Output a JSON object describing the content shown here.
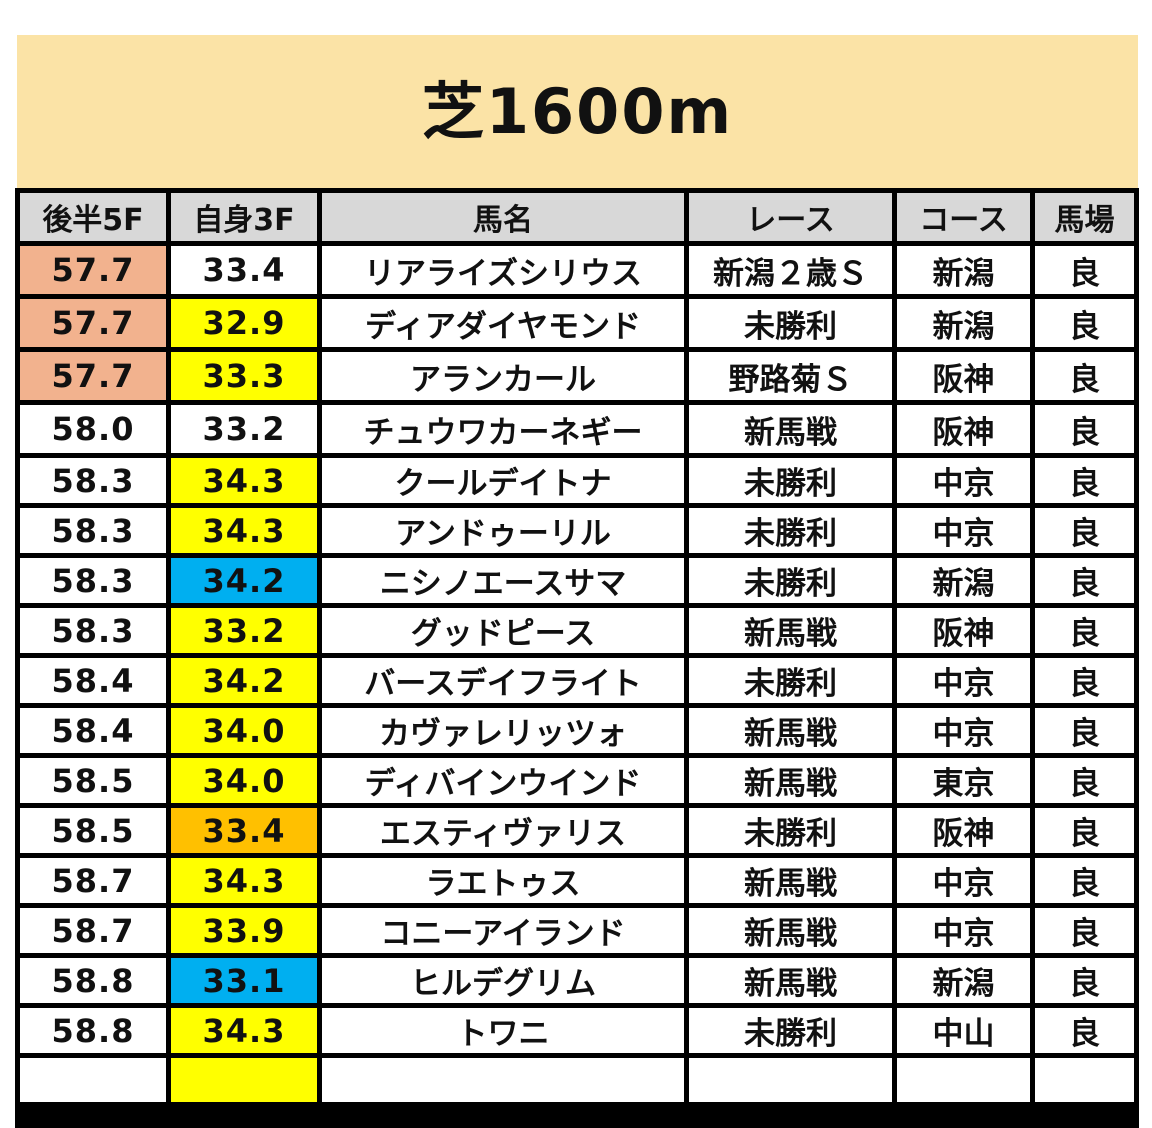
{
  "title": "芝1600m",
  "columns": [
    "後半5F",
    "自身3F",
    "馬名",
    "レース",
    "コース",
    "馬場"
  ],
  "colors": {
    "salmon": "#f2b28e",
    "yellow": "#ffff00",
    "blue": "#00aff0",
    "orange": "#ffc000",
    "white": "#ffffff"
  },
  "rows": [
    {
      "late5f": "57.7",
      "late5f_color": "salmon",
      "own3f": "33.4",
      "own3f_color": "white",
      "horse": "リアライズシリウス",
      "race": "新潟２歳Ｓ",
      "course": "新潟",
      "track": "良"
    },
    {
      "late5f": "57.7",
      "late5f_color": "salmon",
      "own3f": "32.9",
      "own3f_color": "yellow",
      "horse": "ディアダイヤモンド",
      "race": "未勝利",
      "course": "新潟",
      "track": "良"
    },
    {
      "late5f": "57.7",
      "late5f_color": "salmon",
      "own3f": "33.3",
      "own3f_color": "yellow",
      "horse": "アランカール",
      "race": "野路菊Ｓ",
      "course": "阪神",
      "track": "良"
    },
    {
      "late5f": "58.0",
      "late5f_color": "white",
      "own3f": "33.2",
      "own3f_color": "white",
      "horse": "チュウワカーネギー",
      "race": "新馬戦",
      "course": "阪神",
      "track": "良"
    },
    {
      "late5f": "58.3",
      "late5f_color": "white",
      "own3f": "34.3",
      "own3f_color": "yellow",
      "horse": "クールデイトナ",
      "race": "未勝利",
      "course": "中京",
      "track": "良"
    },
    {
      "late5f": "58.3",
      "late5f_color": "white",
      "own3f": "34.3",
      "own3f_color": "yellow",
      "horse": "アンドゥーリル",
      "race": "未勝利",
      "course": "中京",
      "track": "良"
    },
    {
      "late5f": "58.3",
      "late5f_color": "white",
      "own3f": "34.2",
      "own3f_color": "blue",
      "horse": "ニシノエースサマ",
      "race": "未勝利",
      "course": "新潟",
      "track": "良"
    },
    {
      "late5f": "58.3",
      "late5f_color": "white",
      "own3f": "33.2",
      "own3f_color": "yellow",
      "horse": "グッドピース",
      "race": "新馬戦",
      "course": "阪神",
      "track": "良"
    },
    {
      "late5f": "58.4",
      "late5f_color": "white",
      "own3f": "34.2",
      "own3f_color": "yellow",
      "horse": "バースデイフライト",
      "race": "未勝利",
      "course": "中京",
      "track": "良"
    },
    {
      "late5f": "58.4",
      "late5f_color": "white",
      "own3f": "34.0",
      "own3f_color": "yellow",
      "horse": "カヴァレリッツォ",
      "race": "新馬戦",
      "course": "中京",
      "track": "良"
    },
    {
      "late5f": "58.5",
      "late5f_color": "white",
      "own3f": "34.0",
      "own3f_color": "yellow",
      "horse": "ディバインウインド",
      "race": "新馬戦",
      "course": "東京",
      "track": "良"
    },
    {
      "late5f": "58.5",
      "late5f_color": "white",
      "own3f": "33.4",
      "own3f_color": "orange",
      "horse": "エスティヴァリス",
      "race": "未勝利",
      "course": "阪神",
      "track": "良"
    },
    {
      "late5f": "58.7",
      "late5f_color": "white",
      "own3f": "34.3",
      "own3f_color": "yellow",
      "horse": "ラエトゥス",
      "race": "新馬戦",
      "course": "中京",
      "track": "良"
    },
    {
      "late5f": "58.7",
      "late5f_color": "white",
      "own3f": "33.9",
      "own3f_color": "yellow",
      "horse": "コニーアイランド",
      "race": "新馬戦",
      "course": "中京",
      "track": "良"
    },
    {
      "late5f": "58.8",
      "late5f_color": "white",
      "own3f": "33.1",
      "own3f_color": "blue",
      "horse": "ヒルデグリム",
      "race": "新馬戦",
      "course": "新潟",
      "track": "良"
    },
    {
      "late5f": "58.8",
      "late5f_color": "white",
      "own3f": "34.3",
      "own3f_color": "yellow",
      "horse": "トワニ",
      "race": "未勝利",
      "course": "中山",
      "track": "良"
    }
  ]
}
